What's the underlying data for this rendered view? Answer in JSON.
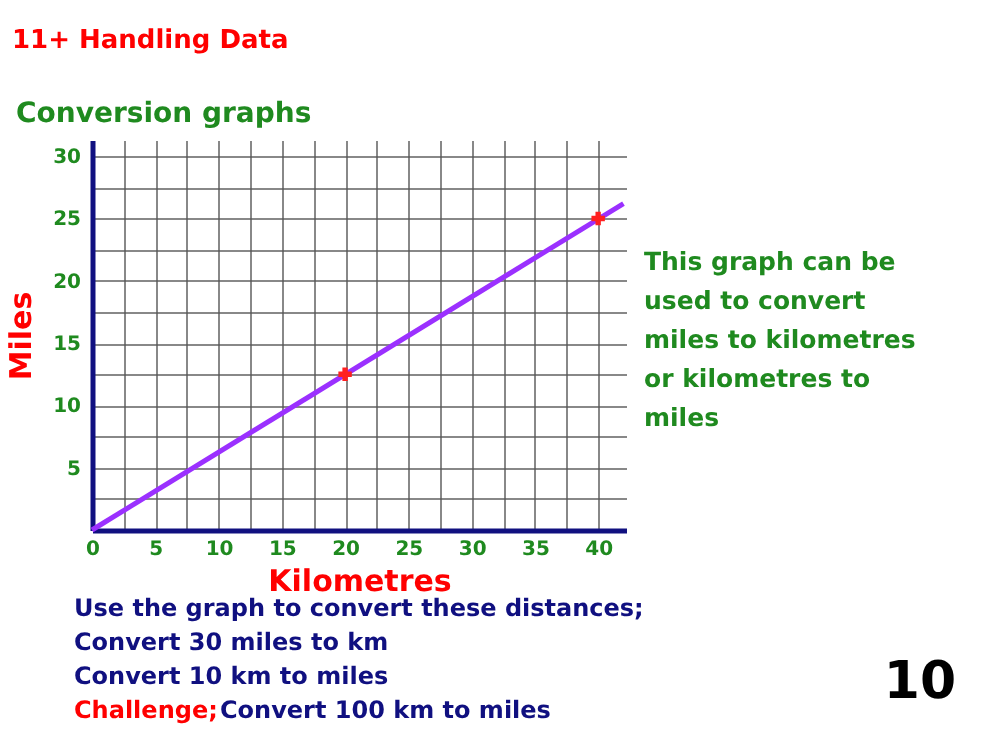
{
  "chart_data": {
    "type": "line",
    "title": "11+ Handling Data",
    "subtitle": "Conversion graphs",
    "xlabel": "Kilometres",
    "ylabel": "Miles",
    "xlim": [
      0,
      42.2
    ],
    "ylim": [
      0,
      31.3
    ],
    "xticks": [
      0,
      {
        "value": 2.5,
        "label": null
      },
      5,
      {
        "value": 7.5,
        "label": null
      },
      10,
      {
        "value": 12.5,
        "label": null
      },
      15,
      {
        "value": 17.5,
        "label": null
      },
      20,
      {
        "value": 22.5,
        "label": null
      },
      25,
      {
        "value": 27.5,
        "label": null
      },
      30,
      {
        "value": 32.5,
        "label": null
      },
      35,
      {
        "value": 37.5,
        "label": null
      },
      40
    ],
    "yticks": [
      {
        "value": 0,
        "label": null
      },
      {
        "value": 2.5,
        "label": null
      },
      5,
      {
        "value": 7.5,
        "label": null
      },
      10,
      {
        "value": 12.5,
        "label": null
      },
      15,
      {
        "value": 17.5,
        "label": null
      },
      20,
      {
        "value": 22.5,
        "label": null
      },
      25,
      {
        "value": 27.5,
        "label": null
      },
      30
    ],
    "grid": true,
    "legend": false,
    "series": [
      {
        "color": "#9b30ff",
        "x": [
          0,
          42
        ],
        "values": [
          0,
          26.2
        ],
        "marker": "none",
        "line_style": "solid"
      },
      {
        "type": "scatter",
        "color": "#ff2020",
        "x": [
          20,
          40
        ],
        "values": [
          12.5,
          25
        ],
        "marker": "cross"
      }
    ],
    "annotations": [
      "This graph can be used to convert miles to kilometres or kilometres to miles",
      "Use the graph to convert these distances;",
      "Convert 30 miles to km",
      "Convert 10 km to miles",
      "Challenge;",
      "Convert 100 km to miles",
      "10"
    ]
  }
}
